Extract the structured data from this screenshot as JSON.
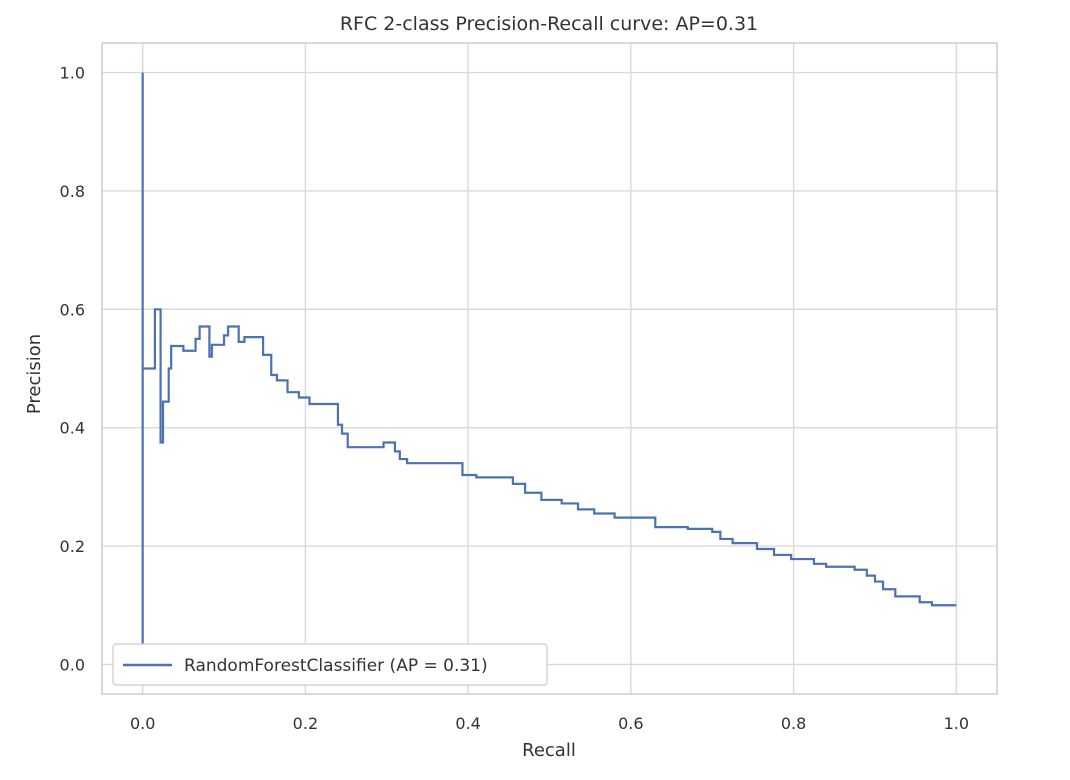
{
  "chart_data": {
    "type": "line",
    "title": "RFC 2-class Precision-Recall curve: AP=0.31",
    "xlabel": "Recall",
    "ylabel": "Precision",
    "xlim": [
      -0.05,
      1.05
    ],
    "ylim": [
      -0.05,
      1.05
    ],
    "xticks": [
      0.0,
      0.2,
      0.4,
      0.6,
      0.8,
      1.0
    ],
    "xtick_labels": [
      "0.0",
      "0.2",
      "0.4",
      "0.6",
      "0.8",
      "1.0"
    ],
    "yticks": [
      0.0,
      0.2,
      0.4,
      0.6,
      0.8,
      1.0
    ],
    "ytick_labels": [
      "0.0",
      "0.2",
      "0.4",
      "0.6",
      "0.8",
      "1.0"
    ],
    "grid": true,
    "legend_position": "lower-left",
    "colors": {
      "series": "#4c72b0",
      "grid": "#d9d9d9",
      "frame": "#cccccc"
    },
    "series": [
      {
        "name": "RandomForestClassifier (AP = 0.31)",
        "step": "post",
        "points": [
          [
            0.0,
            0.03
          ],
          [
            0.0,
            1.0
          ],
          [
            0.0,
            0.5
          ],
          [
            0.015,
            0.5
          ],
          [
            0.015,
            0.6
          ],
          [
            0.022,
            0.6
          ],
          [
            0.022,
            0.375
          ],
          [
            0.025,
            0.375
          ],
          [
            0.025,
            0.444
          ],
          [
            0.032,
            0.444
          ],
          [
            0.032,
            0.5
          ],
          [
            0.035,
            0.5
          ],
          [
            0.035,
            0.538
          ],
          [
            0.05,
            0.538
          ],
          [
            0.05,
            0.53
          ],
          [
            0.065,
            0.53
          ],
          [
            0.065,
            0.55
          ],
          [
            0.07,
            0.55
          ],
          [
            0.07,
            0.571
          ],
          [
            0.082,
            0.571
          ],
          [
            0.082,
            0.52
          ],
          [
            0.085,
            0.52
          ],
          [
            0.085,
            0.54
          ],
          [
            0.1,
            0.54
          ],
          [
            0.1,
            0.556
          ],
          [
            0.105,
            0.556
          ],
          [
            0.105,
            0.571
          ],
          [
            0.118,
            0.571
          ],
          [
            0.118,
            0.545
          ],
          [
            0.125,
            0.545
          ],
          [
            0.125,
            0.553
          ],
          [
            0.148,
            0.553
          ],
          [
            0.148,
            0.523
          ],
          [
            0.158,
            0.523
          ],
          [
            0.158,
            0.489
          ],
          [
            0.165,
            0.489
          ],
          [
            0.165,
            0.48
          ],
          [
            0.178,
            0.48
          ],
          [
            0.178,
            0.46
          ],
          [
            0.192,
            0.46
          ],
          [
            0.192,
            0.451
          ],
          [
            0.205,
            0.451
          ],
          [
            0.205,
            0.44
          ],
          [
            0.24,
            0.44
          ],
          [
            0.24,
            0.405
          ],
          [
            0.245,
            0.405
          ],
          [
            0.245,
            0.39
          ],
          [
            0.252,
            0.39
          ],
          [
            0.252,
            0.367
          ],
          [
            0.296,
            0.367
          ],
          [
            0.296,
            0.375
          ],
          [
            0.31,
            0.375
          ],
          [
            0.31,
            0.36
          ],
          [
            0.316,
            0.36
          ],
          [
            0.316,
            0.347
          ],
          [
            0.325,
            0.347
          ],
          [
            0.325,
            0.34
          ],
          [
            0.393,
            0.34
          ],
          [
            0.393,
            0.32
          ],
          [
            0.41,
            0.32
          ],
          [
            0.41,
            0.316
          ],
          [
            0.455,
            0.316
          ],
          [
            0.455,
            0.305
          ],
          [
            0.47,
            0.305
          ],
          [
            0.47,
            0.29
          ],
          [
            0.49,
            0.29
          ],
          [
            0.49,
            0.278
          ],
          [
            0.515,
            0.278
          ],
          [
            0.515,
            0.272
          ],
          [
            0.535,
            0.272
          ],
          [
            0.535,
            0.262
          ],
          [
            0.555,
            0.262
          ],
          [
            0.555,
            0.255
          ],
          [
            0.58,
            0.255
          ],
          [
            0.58,
            0.248
          ],
          [
            0.63,
            0.248
          ],
          [
            0.63,
            0.232
          ],
          [
            0.67,
            0.232
          ],
          [
            0.67,
            0.229
          ],
          [
            0.7,
            0.229
          ],
          [
            0.7,
            0.224
          ],
          [
            0.71,
            0.224
          ],
          [
            0.71,
            0.212
          ],
          [
            0.725,
            0.212
          ],
          [
            0.725,
            0.205
          ],
          [
            0.755,
            0.205
          ],
          [
            0.755,
            0.195
          ],
          [
            0.776,
            0.195
          ],
          [
            0.776,
            0.185
          ],
          [
            0.797,
            0.185
          ],
          [
            0.797,
            0.178
          ],
          [
            0.825,
            0.178
          ],
          [
            0.825,
            0.17
          ],
          [
            0.84,
            0.17
          ],
          [
            0.84,
            0.165
          ],
          [
            0.875,
            0.165
          ],
          [
            0.875,
            0.16
          ],
          [
            0.89,
            0.16
          ],
          [
            0.89,
            0.15
          ],
          [
            0.9,
            0.15
          ],
          [
            0.9,
            0.14
          ],
          [
            0.91,
            0.14
          ],
          [
            0.91,
            0.127
          ],
          [
            0.925,
            0.127
          ],
          [
            0.925,
            0.115
          ],
          [
            0.955,
            0.115
          ],
          [
            0.955,
            0.105
          ],
          [
            0.97,
            0.105
          ],
          [
            0.97,
            0.1
          ],
          [
            1.0,
            0.1
          ]
        ]
      }
    ]
  }
}
